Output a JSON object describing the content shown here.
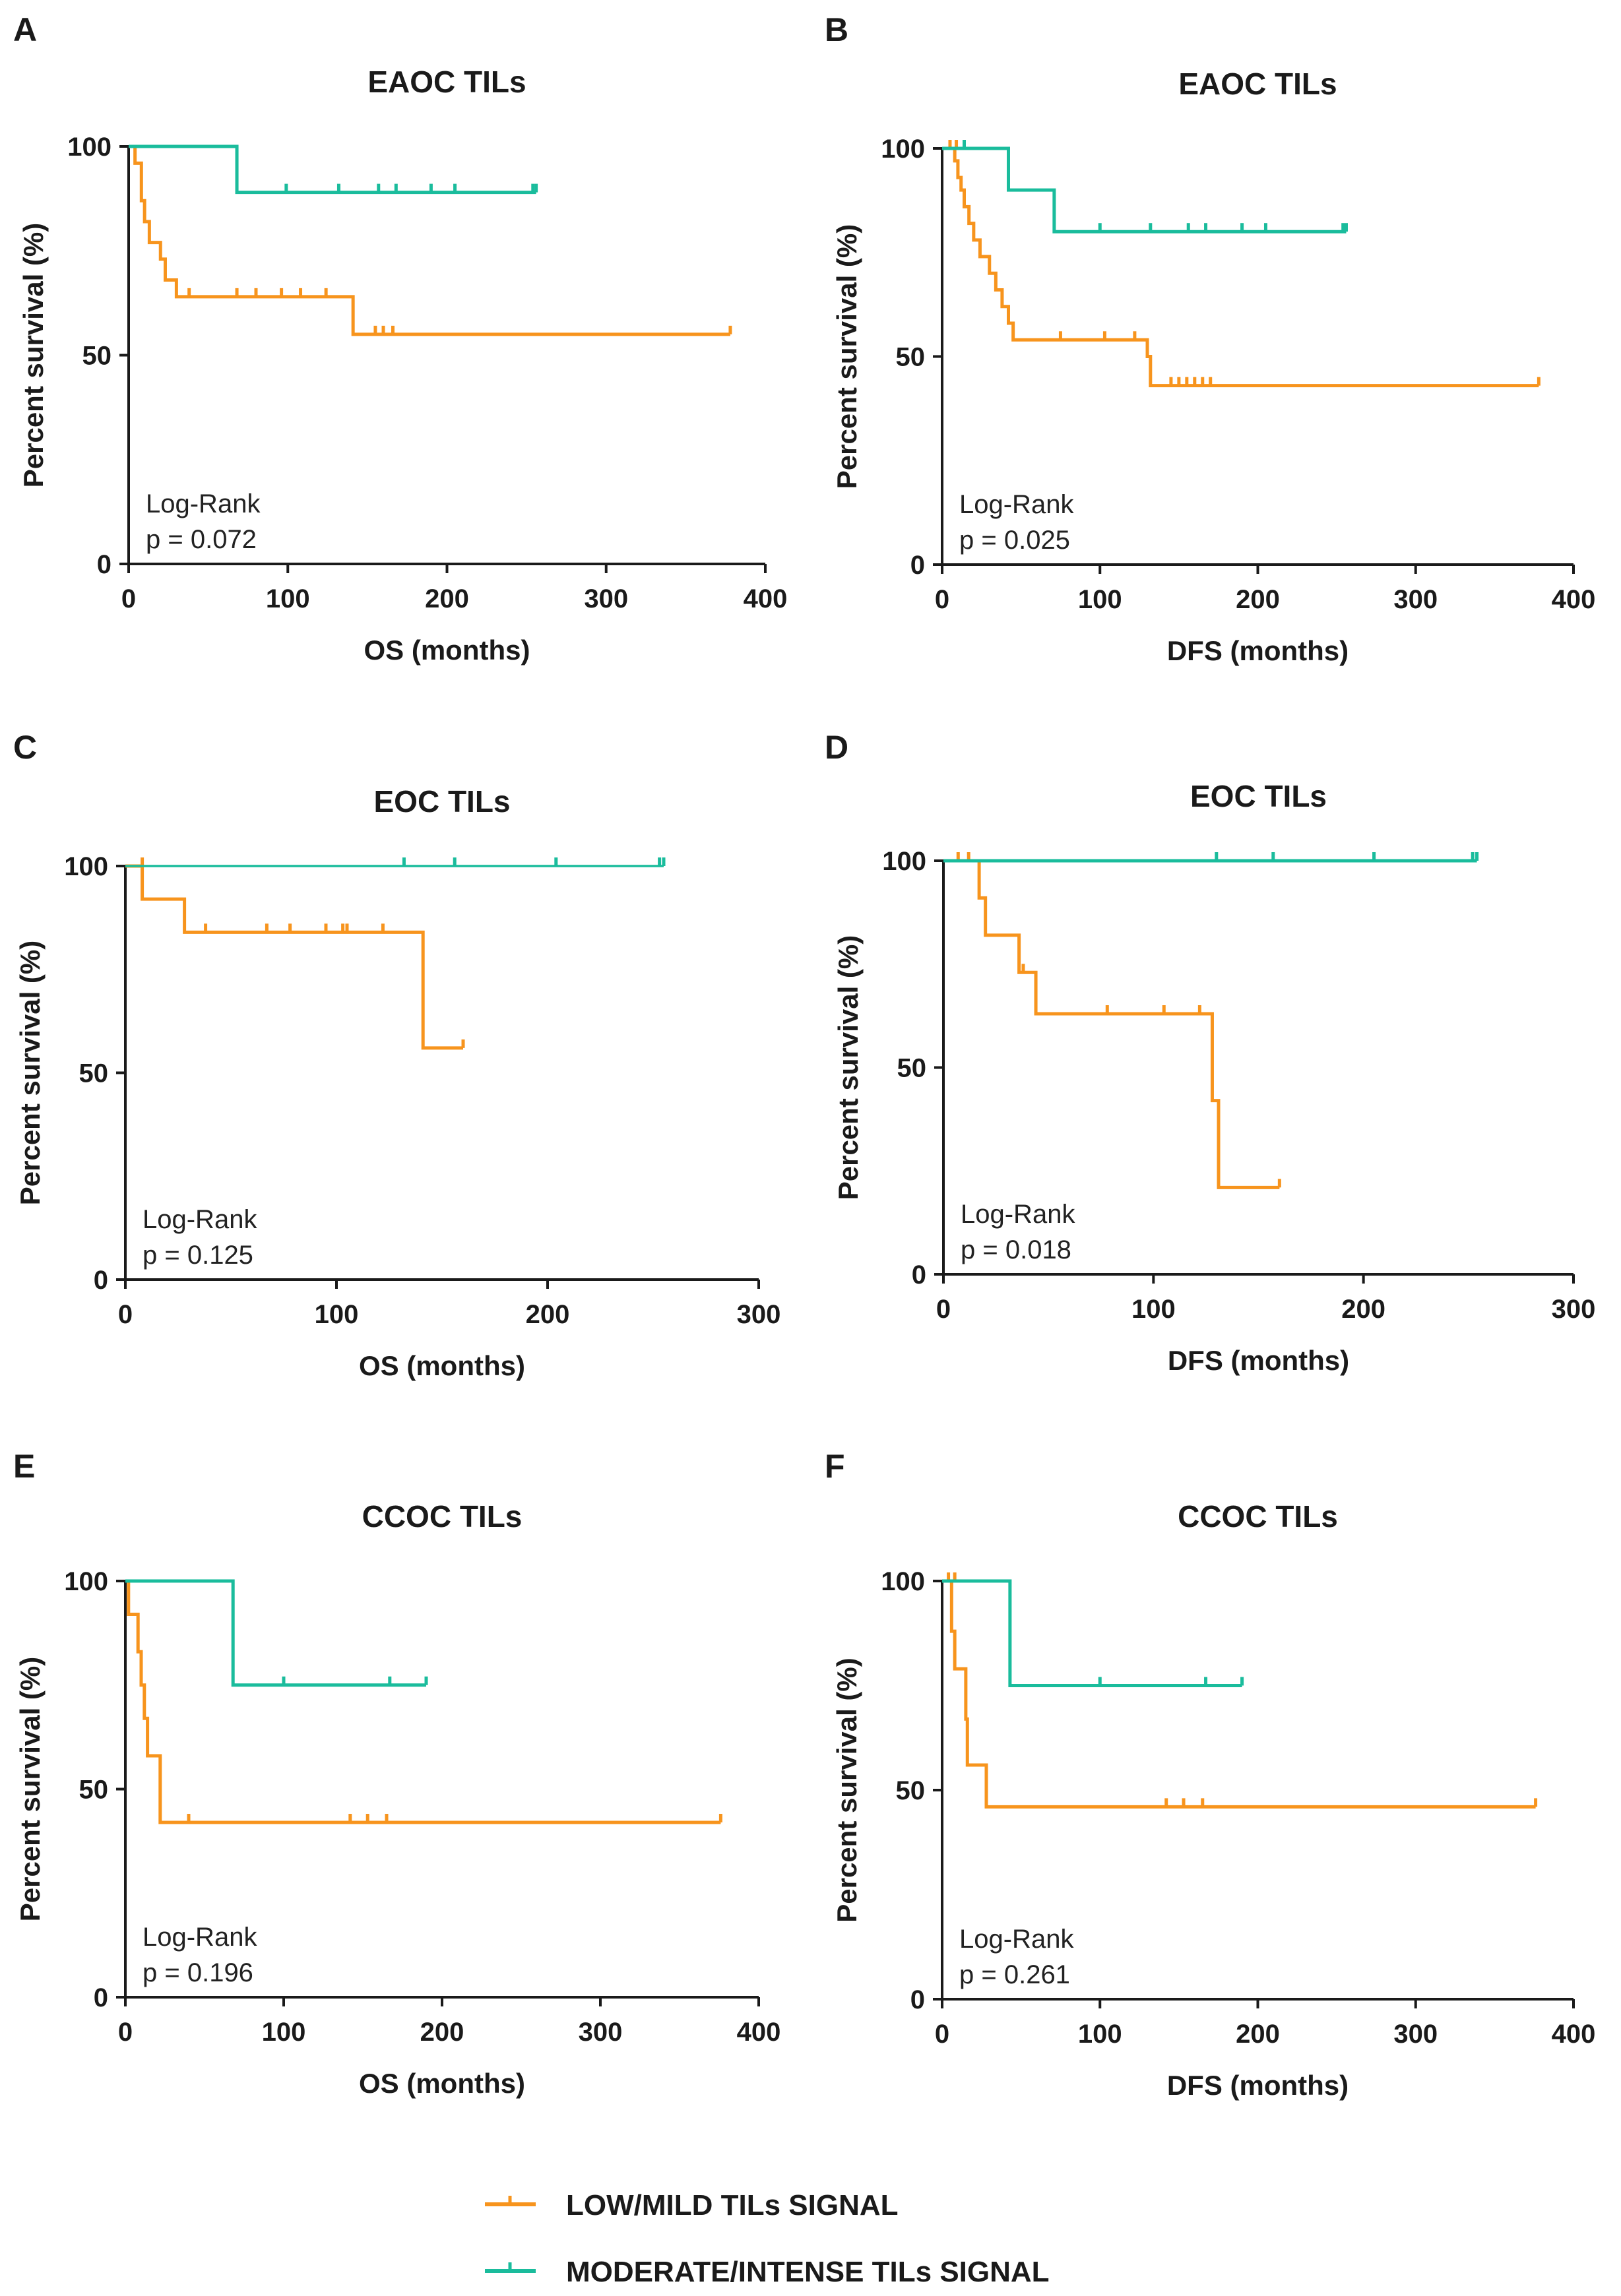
{
  "colors": {
    "low": "#f7941d",
    "high": "#1abc9c",
    "axis": "#1a1a1a"
  },
  "legend": [
    {
      "key": "low",
      "label": "LOW/MILD TILs SIGNAL"
    },
    {
      "key": "high",
      "label": "MODERATE/INTENSE TILs SIGNAL"
    }
  ],
  "chart_data": [
    {
      "id": "A",
      "type": "line",
      "title": "EAOC TILs",
      "xlabel": "OS (months)",
      "ylabel": "Percent survival (%)",
      "xlim": [
        0,
        400
      ],
      "ylim": [
        0,
        100
      ],
      "xticks": [
        0,
        100,
        200,
        300,
        400
      ],
      "yticks": [
        0,
        50,
        100
      ],
      "annotation": {
        "test": "Log-Rank",
        "p": "p = 0.072"
      },
      "series": [
        {
          "name": "LOW/MILD TILs SIGNAL",
          "key": "low",
          "steps": [
            [
              0,
              100
            ],
            [
              4,
              96
            ],
            [
              8,
              87
            ],
            [
              10,
              82
            ],
            [
              13,
              77
            ],
            [
              20,
              73
            ],
            [
              23,
              68
            ],
            [
              30,
              64
            ],
            [
              141,
              64
            ],
            [
              141,
              55
            ],
            [
              378,
              55
            ]
          ],
          "censors": [
            [
              38,
              64
            ],
            [
              68,
              64
            ],
            [
              80,
              64
            ],
            [
              96,
              64
            ],
            [
              108,
              64
            ],
            [
              124,
              64
            ],
            [
              155,
              55
            ],
            [
              160,
              55
            ],
            [
              166,
              55
            ],
            [
              378,
              55
            ]
          ]
        },
        {
          "name": "MODERATE/INTENSE TILs SIGNAL",
          "key": "high",
          "steps": [
            [
              0,
              100
            ],
            [
              68,
              100
            ],
            [
              68,
              89
            ],
            [
              256,
              89
            ]
          ],
          "censors": [
            [
              99,
              89
            ],
            [
              132,
              89
            ],
            [
              157,
              89
            ],
            [
              168,
              89
            ],
            [
              190,
              89
            ],
            [
              205,
              89
            ],
            [
              254,
              89
            ],
            [
              256,
              89
            ]
          ]
        }
      ]
    },
    {
      "id": "B",
      "type": "line",
      "title": "EAOC TILs",
      "xlabel": "DFS (months)",
      "ylabel": "Percent survival (%)",
      "xlim": [
        0,
        400
      ],
      "ylim": [
        0,
        100
      ],
      "xticks": [
        0,
        100,
        200,
        300,
        400
      ],
      "yticks": [
        0,
        50,
        100
      ],
      "annotation": {
        "test": "Log-Rank",
        "p": "p = 0.025"
      },
      "series": [
        {
          "name": "LOW/MILD TILs SIGNAL",
          "key": "low",
          "steps": [
            [
              0,
              100
            ],
            [
              8,
              97
            ],
            [
              10,
              93
            ],
            [
              12,
              90
            ],
            [
              14,
              86
            ],
            [
              17,
              82
            ],
            [
              20,
              78
            ],
            [
              24,
              74
            ],
            [
              30,
              70
            ],
            [
              34,
              66
            ],
            [
              38,
              62
            ],
            [
              42,
              58
            ],
            [
              45,
              54
            ],
            [
              126,
              54
            ],
            [
              130,
              50
            ],
            [
              132,
              43
            ],
            [
              378,
              43
            ]
          ],
          "censors": [
            [
              5,
              100
            ],
            [
              9,
              100
            ],
            [
              75,
              54
            ],
            [
              103,
              54
            ],
            [
              122,
              54
            ],
            [
              145,
              43
            ],
            [
              150,
              43
            ],
            [
              155,
              43
            ],
            [
              160,
              43
            ],
            [
              165,
              43
            ],
            [
              170,
              43
            ],
            [
              378,
              43
            ]
          ]
        },
        {
          "name": "MODERATE/INTENSE TILs SIGNAL",
          "key": "high",
          "steps": [
            [
              0,
              100
            ],
            [
              42,
              100
            ],
            [
              42,
              90
            ],
            [
              71,
              90
            ],
            [
              71,
              80
            ],
            [
              256,
              80
            ]
          ],
          "censors": [
            [
              14,
              100
            ],
            [
              100,
              80
            ],
            [
              132,
              80
            ],
            [
              156,
              80
            ],
            [
              167,
              80
            ],
            [
              190,
              80
            ],
            [
              205,
              80
            ],
            [
              254,
              80
            ],
            [
              256,
              80
            ]
          ]
        }
      ]
    },
    {
      "id": "C",
      "type": "line",
      "title": "EOC TILs",
      "xlabel": "OS (months)",
      "ylabel": "Percent survival (%)",
      "xlim": [
        0,
        300
      ],
      "ylim": [
        0,
        100
      ],
      "xticks": [
        0,
        100,
        200,
        300
      ],
      "yticks": [
        0,
        50,
        100
      ],
      "annotation": {
        "test": "Log-Rank",
        "p": "p = 0.125"
      },
      "series": [
        {
          "name": "LOW/MILD TILs SIGNAL",
          "key": "low",
          "steps": [
            [
              0,
              100
            ],
            [
              8,
              92
            ],
            [
              28,
              92
            ],
            [
              28,
              84
            ],
            [
              141,
              84
            ],
            [
              141,
              56
            ],
            [
              160,
              56
            ]
          ],
          "censors": [
            [
              8,
              100
            ],
            [
              38,
              84
            ],
            [
              67,
              84
            ],
            [
              78,
              84
            ],
            [
              95,
              84
            ],
            [
              103,
              84
            ],
            [
              105,
              84
            ],
            [
              122,
              84
            ],
            [
              160,
              56
            ]
          ]
        },
        {
          "name": "MODERATE/INTENSE TILs SIGNAL",
          "key": "high",
          "steps": [
            [
              0,
              100
            ],
            [
              255,
              100
            ]
          ],
          "censors": [
            [
              132,
              100
            ],
            [
              156,
              100
            ],
            [
              204,
              100
            ],
            [
              253,
              100
            ],
            [
              255,
              100
            ]
          ]
        }
      ]
    },
    {
      "id": "D",
      "type": "line",
      "title": "EOC TILs",
      "xlabel": "DFS (months)",
      "ylabel": "Percent survival (%)",
      "xlim": [
        0,
        300
      ],
      "ylim": [
        0,
        100
      ],
      "xticks": [
        0,
        100,
        200,
        300
      ],
      "yticks": [
        0,
        50,
        100
      ],
      "annotation": {
        "test": "Log-Rank",
        "p": "p = 0.018"
      },
      "series": [
        {
          "name": "LOW/MILD TILs SIGNAL",
          "key": "low",
          "steps": [
            [
              0,
              100
            ],
            [
              17,
              100
            ],
            [
              17,
              91
            ],
            [
              20,
              82
            ],
            [
              34,
              82
            ],
            [
              36,
              73
            ],
            [
              42,
              73
            ],
            [
              44,
              63
            ],
            [
              127,
              63
            ],
            [
              128,
              42
            ],
            [
              131,
              21
            ],
            [
              160,
              21
            ]
          ],
          "censors": [
            [
              7,
              100
            ],
            [
              12,
              100
            ],
            [
              38,
              73
            ],
            [
              78,
              63
            ],
            [
              105,
              63
            ],
            [
              122,
              63
            ],
            [
              160,
              21
            ]
          ]
        },
        {
          "name": "MODERATE/INTENSE TILs SIGNAL",
          "key": "high",
          "steps": [
            [
              0,
              100
            ],
            [
              254,
              100
            ]
          ],
          "censors": [
            [
              130,
              100
            ],
            [
              157,
              100
            ],
            [
              205,
              100
            ],
            [
              252,
              100
            ],
            [
              254,
              100
            ]
          ]
        }
      ]
    },
    {
      "id": "E",
      "type": "line",
      "title": "CCOC TILs",
      "xlabel": "OS (months)",
      "ylabel": "Percent survival (%)",
      "xlim": [
        0,
        400
      ],
      "ylim": [
        0,
        100
      ],
      "xticks": [
        0,
        100,
        200,
        300,
        400
      ],
      "yticks": [
        0,
        50,
        100
      ],
      "annotation": {
        "test": "Log-Rank",
        "p": "p = 0.196"
      },
      "series": [
        {
          "name": "LOW/MILD TILs SIGNAL",
          "key": "low",
          "steps": [
            [
              0,
              100
            ],
            [
              2,
              92
            ],
            [
              8,
              83
            ],
            [
              10,
              75
            ],
            [
              12,
              67
            ],
            [
              14,
              58
            ],
            [
              20,
              58
            ],
            [
              22,
              42
            ],
            [
              376,
              42
            ]
          ],
          "censors": [
            [
              40,
              42
            ],
            [
              142,
              42
            ],
            [
              153,
              42
            ],
            [
              165,
              42
            ],
            [
              376,
              42
            ]
          ]
        },
        {
          "name": "MODERATE/INTENSE TILs SIGNAL",
          "key": "high",
          "steps": [
            [
              0,
              100
            ],
            [
              68,
              100
            ],
            [
              68,
              75
            ],
            [
              190,
              75
            ]
          ],
          "censors": [
            [
              100,
              75
            ],
            [
              167,
              75
            ],
            [
              190,
              75
            ]
          ]
        }
      ]
    },
    {
      "id": "F",
      "type": "line",
      "title": "CCOC TILs",
      "xlabel": "DFS (months)",
      "ylabel": "Percent survival (%)",
      "xlim": [
        0,
        400
      ],
      "ylim": [
        0,
        100
      ],
      "xticks": [
        0,
        100,
        200,
        300,
        400
      ],
      "yticks": [
        0,
        50,
        100
      ],
      "annotation": {
        "test": "Log-Rank",
        "p": "p = 0.261"
      },
      "series": [
        {
          "name": "LOW/MILD TILs SIGNAL",
          "key": "low",
          "steps": [
            [
              0,
              100
            ],
            [
              6,
              88
            ],
            [
              8,
              79
            ],
            [
              14,
              79
            ],
            [
              15,
              67
            ],
            [
              16,
              56
            ],
            [
              26,
              56
            ],
            [
              28,
              46
            ],
            [
              376,
              46
            ]
          ],
          "censors": [
            [
              4,
              100
            ],
            [
              8,
              100
            ],
            [
              142,
              46
            ],
            [
              153,
              46
            ],
            [
              165,
              46
            ],
            [
              376,
              46
            ]
          ]
        },
        {
          "name": "MODERATE/INTENSE TILs SIGNAL",
          "key": "high",
          "steps": [
            [
              0,
              100
            ],
            [
              43,
              100
            ],
            [
              43,
              75
            ],
            [
              190,
              75
            ]
          ],
          "censors": [
            [
              100,
              75
            ],
            [
              167,
              75
            ],
            [
              190,
              75
            ]
          ]
        }
      ]
    }
  ]
}
